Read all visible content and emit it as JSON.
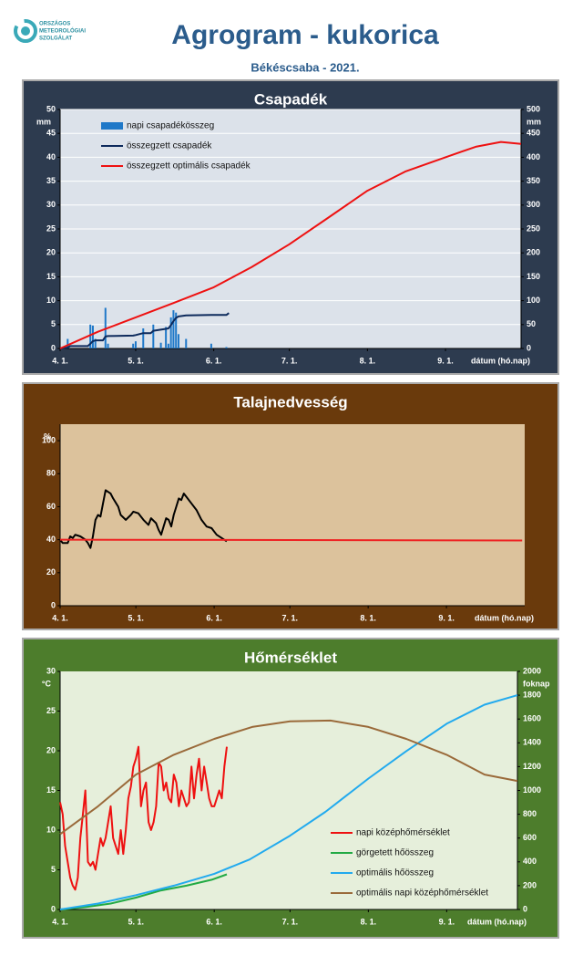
{
  "header": {
    "title": "Agrogram - kukorica",
    "subtitle": "Békéscsaba - 2021.",
    "logo_text": [
      "ORSZÁGOS",
      "METEOROLÓGIAI",
      "SZOLGÁLAT"
    ]
  },
  "chart_data": [
    {
      "type": "line",
      "title": "Csapadék",
      "ylabel": "mm",
      "y2label": "mm",
      "xlabel": "dátum (hó.nap)",
      "grid": true,
      "legend": "upper left",
      "xlim": [
        0,
        183
      ],
      "xticks": [
        {
          "value": 0,
          "label": "4. 1."
        },
        {
          "value": 30,
          "label": "5. 1."
        },
        {
          "value": 61,
          "label": "6. 1."
        },
        {
          "value": 91,
          "label": "7. 1."
        },
        {
          "value": 122,
          "label": "8. 1."
        },
        {
          "value": 153,
          "label": "9. 1."
        }
      ],
      "ylim": [
        0,
        50
      ],
      "yticks": [
        0,
        5,
        10,
        15,
        20,
        25,
        30,
        35,
        40,
        45,
        50
      ],
      "y2lim": [
        0,
        500
      ],
      "y2ticks": [
        0,
        50,
        100,
        150,
        200,
        250,
        300,
        350,
        400,
        450,
        500
      ],
      "series": [
        {
          "name": "napi csapadékösszeg",
          "type": "bar",
          "color": "#1f78c8",
          "x": [
            3,
            12,
            13,
            14,
            18,
            19,
            29,
            30,
            33,
            37,
            40,
            42,
            43,
            44,
            45,
            46,
            47,
            50,
            60,
            66
          ],
          "values": [
            2,
            5,
            4.8,
            2,
            8.5,
            1,
            1,
            1.5,
            4.2,
            5,
            1.2,
            4.5,
            1,
            6.5,
            8,
            7.5,
            3,
            2,
            1,
            0.3
          ]
        },
        {
          "name": "összegzett csapadék",
          "type": "line",
          "axis": "y2",
          "color": "#0d2a5c",
          "x": [
            0,
            3,
            4,
            11,
            12,
            13,
            14,
            17,
            18,
            19,
            29,
            30,
            33,
            36,
            37,
            42,
            43,
            44,
            45,
            46,
            47,
            50,
            60,
            66,
            67
          ],
          "values": [
            0,
            2,
            5,
            5,
            10,
            15,
            17,
            17,
            25,
            26,
            27,
            28,
            32,
            32,
            37,
            41,
            42,
            49,
            57,
            64,
            67,
            69,
            70,
            70,
            74
          ]
        },
        {
          "name": "összegzett optimális  csapadék",
          "type": "line",
          "axis": "y2",
          "color": "#ee1111",
          "x": [
            0,
            15,
            30,
            45,
            61,
            76,
            91,
            106,
            122,
            137,
            153,
            165,
            175,
            183
          ],
          "values": [
            0,
            35,
            65,
            95,
            128,
            170,
            218,
            272,
            330,
            370,
            400,
            422,
            432,
            428
          ]
        }
      ]
    },
    {
      "type": "line",
      "title": "Talajnedvesség",
      "ylabel": "%",
      "xlabel": "dátum (hó.nap)",
      "xlim": [
        0,
        184
      ],
      "xticks": [
        {
          "value": 0,
          "label": "4. 1."
        },
        {
          "value": 30,
          "label": "5. 1."
        },
        {
          "value": 61,
          "label": "6. 1."
        },
        {
          "value": 91,
          "label": "7. 1."
        },
        {
          "value": 122,
          "label": "8. 1."
        },
        {
          "value": 153,
          "label": "9. 1."
        }
      ],
      "ylim": [
        0,
        110
      ],
      "yticks": [
        0,
        20,
        40,
        60,
        80,
        100
      ],
      "series": [
        {
          "type": "line",
          "color": "#000000",
          "x": [
            0,
            1,
            3,
            4,
            5,
            6,
            8,
            10,
            11,
            12,
            13,
            14,
            15,
            16,
            17,
            18,
            19,
            20,
            21,
            23,
            24,
            26,
            28,
            29,
            31,
            33,
            35,
            36,
            38,
            39,
            40,
            41,
            42,
            43,
            44,
            45,
            46,
            47,
            48,
            49,
            50,
            52,
            54,
            56,
            58,
            60,
            62,
            64,
            66
          ],
          "values": [
            40,
            38,
            38,
            42,
            41,
            43,
            42,
            40,
            38,
            35,
            42,
            52,
            55,
            54,
            62,
            70,
            69,
            68,
            65,
            60,
            55,
            52,
            55,
            57,
            56,
            52,
            49,
            53,
            50,
            46,
            43,
            48,
            53,
            52,
            48,
            55,
            60,
            65,
            64,
            68,
            66,
            62,
            58,
            52,
            48,
            47,
            43,
            41,
            39
          ]
        },
        {
          "type": "line",
          "color": "#ee2222",
          "x": [
            0,
            183
          ],
          "values": [
            40,
            39.5
          ]
        }
      ]
    },
    {
      "type": "line",
      "title": "Hőmérséklet",
      "ylabel": "°C",
      "y2label": "foknap",
      "xlabel": "dátum (hó.nap)",
      "legend": "lower right",
      "xlim": [
        0,
        181
      ],
      "xticks": [
        {
          "value": 0,
          "label": "4. 1."
        },
        {
          "value": 30,
          "label": "5. 1."
        },
        {
          "value": 61,
          "label": "6. 1."
        },
        {
          "value": 91,
          "label": "7. 1."
        },
        {
          "value": 122,
          "label": "8. 1."
        },
        {
          "value": 153,
          "label": "9. 1."
        }
      ],
      "ylim": [
        0,
        30
      ],
      "yticks": [
        0,
        5,
        10,
        15,
        20,
        25,
        30
      ],
      "y2lim": [
        0,
        2000
      ],
      "y2ticks": [
        0,
        200,
        400,
        600,
        800,
        1000,
        1200,
        1400,
        1600,
        1800,
        2000
      ],
      "series": [
        {
          "name": "napi középhőmérséklet",
          "type": "line",
          "color": "#ee1111",
          "x": [
            0,
            1,
            2,
            3,
            4,
            5,
            6,
            7,
            8,
            9,
            10,
            11,
            12,
            13,
            14,
            15,
            16,
            17,
            18,
            19,
            20,
            21,
            22,
            23,
            24,
            25,
            26,
            27,
            28,
            29,
            30,
            31,
            32,
            33,
            34,
            35,
            36,
            37,
            38,
            39,
            40,
            41,
            42,
            43,
            44,
            45,
            46,
            47,
            48,
            49,
            50,
            51,
            52,
            53,
            54,
            55,
            56,
            57,
            58,
            59,
            60,
            61,
            62,
            63,
            64,
            65,
            66
          ],
          "values": [
            13.5,
            12,
            8,
            6,
            4,
            3,
            2.5,
            4,
            9,
            12,
            15,
            6,
            5.5,
            6,
            5,
            7,
            9,
            8,
            9,
            11,
            13,
            9,
            8,
            7,
            10,
            7,
            10,
            14,
            15.5,
            18,
            19,
            20.5,
            13,
            15,
            16,
            11,
            10,
            11,
            13,
            18.5,
            18,
            15,
            16,
            14,
            13.5,
            17,
            16,
            13,
            15,
            14,
            13,
            13.5,
            18,
            14,
            17,
            19,
            15,
            18,
            16,
            14,
            13,
            13,
            14,
            15,
            14,
            18,
            20.5
          ]
        },
        {
          "name": "görgetett hőösszeg",
          "type": "line",
          "axis": "y2",
          "color": "#22aa44",
          "x": [
            0,
            10,
            20,
            30,
            40,
            50,
            60,
            66
          ],
          "values": [
            0,
            20,
            50,
            100,
            160,
            200,
            250,
            295
          ]
        },
        {
          "name": "optimális hőösszeg",
          "type": "line",
          "axis": "y2",
          "color": "#22aaee",
          "x": [
            0,
            15,
            30,
            45,
            61,
            75,
            91,
            105,
            122,
            137,
            153,
            168,
            181
          ],
          "values": [
            0,
            50,
            120,
            200,
            300,
            420,
            620,
            820,
            1100,
            1330,
            1560,
            1720,
            1800
          ]
        },
        {
          "name": "optimális napi középhőmérséklet",
          "type": "line",
          "color": "#9a6a3a",
          "x": [
            0,
            15,
            30,
            45,
            61,
            76,
            91,
            107,
            122,
            137,
            153,
            168,
            181
          ],
          "values": [
            9.5,
            13,
            17,
            19.5,
            21.5,
            23,
            23.7,
            23.8,
            23,
            21.5,
            19.5,
            17,
            16.2
          ]
        }
      ]
    }
  ]
}
